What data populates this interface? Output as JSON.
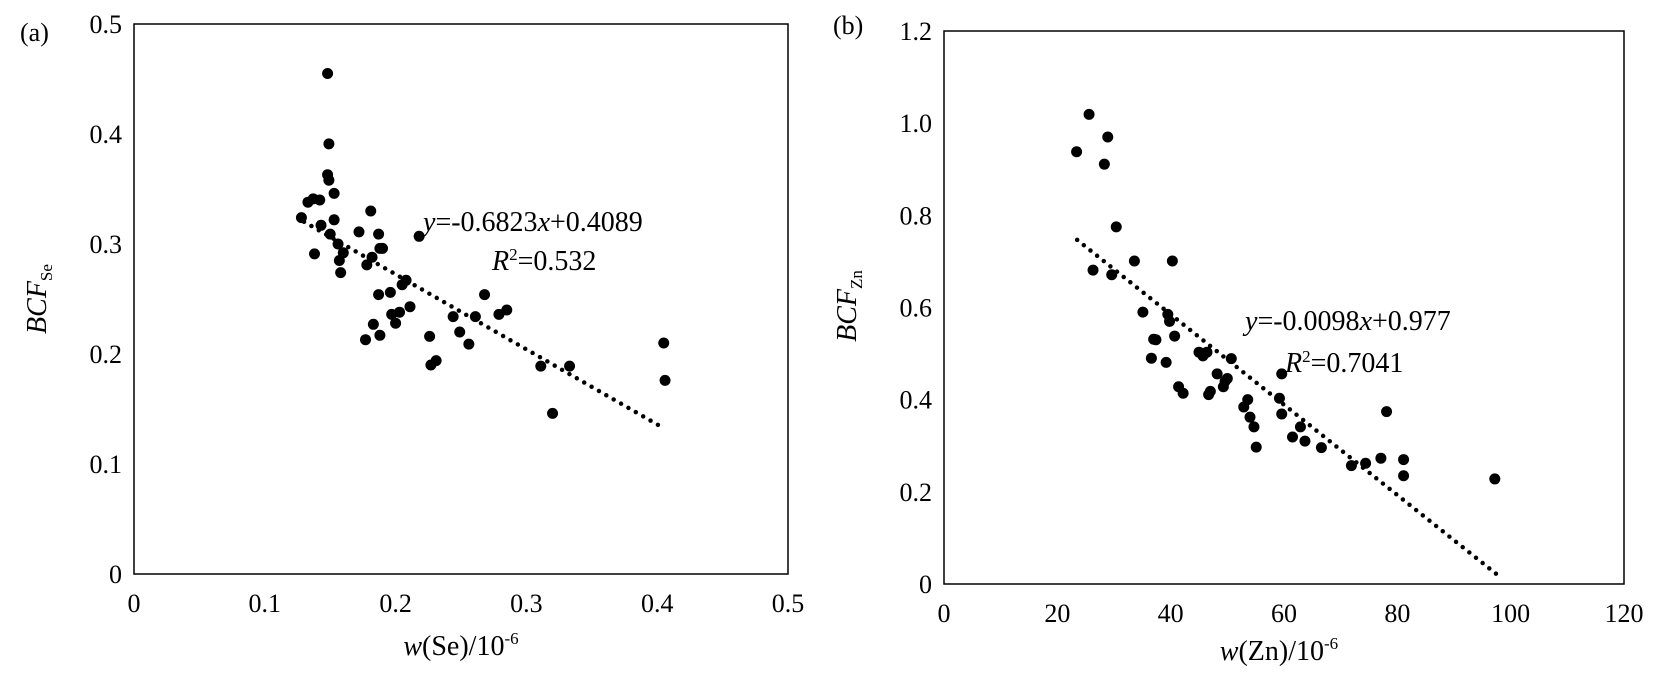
{
  "chart_data": [
    {
      "type": "scatter",
      "panel_label": "(a)",
      "xlabel": {
        "var": "w",
        "inner": "(Se)/10",
        "exp": "-6"
      },
      "ylabel": {
        "main": "BCF",
        "sub": "Se"
      },
      "xlim": [
        0,
        0.5
      ],
      "ylim": [
        0,
        0.5
      ],
      "xticks": [
        "0",
        "0.1",
        "0.2",
        "0.3",
        "0.4",
        "0.5"
      ],
      "yticks": [
        "0",
        "0.1",
        "0.2",
        "0.3",
        "0.4",
        "0.5"
      ],
      "grid": false,
      "trendline": {
        "slope": -0.6823,
        "intercept": 0.4089,
        "x_range": [
          0.13,
          0.405
        ],
        "style": "dotted"
      },
      "equation": {
        "y": "y",
        "rest": "=-0.6823",
        "x": "x",
        "tail": "+0.4089"
      },
      "r2": {
        "R": "R",
        "sup": "2",
        "value": "=0.532"
      },
      "points": [
        [
          0.128,
          0.324
        ],
        [
          0.133,
          0.338
        ],
        [
          0.137,
          0.341
        ],
        [
          0.138,
          0.291
        ],
        [
          0.142,
          0.34
        ],
        [
          0.143,
          0.317
        ],
        [
          0.148,
          0.455
        ],
        [
          0.148,
          0.363
        ],
        [
          0.149,
          0.391
        ],
        [
          0.149,
          0.358
        ],
        [
          0.15,
          0.309
        ],
        [
          0.153,
          0.346
        ],
        [
          0.153,
          0.322
        ],
        [
          0.156,
          0.3
        ],
        [
          0.157,
          0.285
        ],
        [
          0.158,
          0.274
        ],
        [
          0.16,
          0.292
        ],
        [
          0.172,
          0.311
        ],
        [
          0.177,
          0.213
        ],
        [
          0.178,
          0.281
        ],
        [
          0.181,
          0.33
        ],
        [
          0.182,
          0.288
        ],
        [
          0.183,
          0.227
        ],
        [
          0.187,
          0.309
        ],
        [
          0.187,
          0.254
        ],
        [
          0.188,
          0.296
        ],
        [
          0.188,
          0.217
        ],
        [
          0.19,
          0.296
        ],
        [
          0.196,
          0.256
        ],
        [
          0.197,
          0.236
        ],
        [
          0.2,
          0.228
        ],
        [
          0.203,
          0.238
        ],
        [
          0.205,
          0.263
        ],
        [
          0.208,
          0.267
        ],
        [
          0.211,
          0.243
        ],
        [
          0.218,
          0.307
        ],
        [
          0.226,
          0.216
        ],
        [
          0.227,
          0.19
        ],
        [
          0.231,
          0.194
        ],
        [
          0.244,
          0.234
        ],
        [
          0.249,
          0.22
        ],
        [
          0.256,
          0.209
        ],
        [
          0.261,
          0.234
        ],
        [
          0.268,
          0.254
        ],
        [
          0.279,
          0.236
        ],
        [
          0.285,
          0.24
        ],
        [
          0.311,
          0.189
        ],
        [
          0.32,
          0.146
        ],
        [
          0.333,
          0.189
        ],
        [
          0.405,
          0.21
        ],
        [
          0.406,
          0.176
        ]
      ]
    },
    {
      "type": "scatter",
      "panel_label": "(b)",
      "xlabel": {
        "var": "w",
        "inner": "(Zn)/10",
        "exp": "-6"
      },
      "ylabel": {
        "main": "BCF",
        "sub": "Zn"
      },
      "xlim": [
        0,
        120
      ],
      "ylim": [
        0,
        1.2
      ],
      "xticks": [
        "0",
        "20",
        "40",
        "60",
        "80",
        "100",
        "120"
      ],
      "yticks": [
        "0",
        "0.2",
        "0.4",
        "0.6",
        "0.8",
        "1.0",
        "1.2"
      ],
      "grid": false,
      "trendline": {
        "slope": -0.0098,
        "intercept": 0.977,
        "x_range": [
          23.5,
          97.5
        ],
        "style": "dotted"
      },
      "equation": {
        "y": "y",
        "rest": "=-0.0098",
        "x": "x",
        "tail": "+0.977"
      },
      "r2": {
        "R": "R",
        "sup": "2",
        "value": "=0.7041"
      },
      "points": [
        [
          23.4,
          0.938
        ],
        [
          25.6,
          1.019
        ],
        [
          26.3,
          0.681
        ],
        [
          28.3,
          0.911
        ],
        [
          28.9,
          0.97
        ],
        [
          29.6,
          0.671
        ],
        [
          30.4,
          0.775
        ],
        [
          33.6,
          0.701
        ],
        [
          35.1,
          0.59
        ],
        [
          36.6,
          0.49
        ],
        [
          37.0,
          0.531
        ],
        [
          37.4,
          0.53
        ],
        [
          39.2,
          0.481
        ],
        [
          39.5,
          0.585
        ],
        [
          39.8,
          0.57
        ],
        [
          40.3,
          0.701
        ],
        [
          40.7,
          0.538
        ],
        [
          41.4,
          0.428
        ],
        [
          42.2,
          0.414
        ],
        [
          45.0,
          0.503
        ],
        [
          45.7,
          0.495
        ],
        [
          46.4,
          0.503
        ],
        [
          46.7,
          0.411
        ],
        [
          47.0,
          0.418
        ],
        [
          48.2,
          0.456
        ],
        [
          49.3,
          0.428
        ],
        [
          49.6,
          0.44
        ],
        [
          50.0,
          0.446
        ],
        [
          50.7,
          0.489
        ],
        [
          52.9,
          0.384
        ],
        [
          53.6,
          0.4
        ],
        [
          54.0,
          0.362
        ],
        [
          54.7,
          0.341
        ],
        [
          55.1,
          0.297
        ],
        [
          59.2,
          0.403
        ],
        [
          59.6,
          0.456
        ],
        [
          59.6,
          0.369
        ],
        [
          61.5,
          0.319
        ],
        [
          62.9,
          0.341
        ],
        [
          63.7,
          0.31
        ],
        [
          66.6,
          0.296
        ],
        [
          71.9,
          0.257
        ],
        [
          74.4,
          0.262
        ],
        [
          77.1,
          0.273
        ],
        [
          78.1,
          0.374
        ],
        [
          81.1,
          0.27
        ],
        [
          81.1,
          0.235
        ],
        [
          97.2,
          0.228
        ]
      ]
    }
  ]
}
